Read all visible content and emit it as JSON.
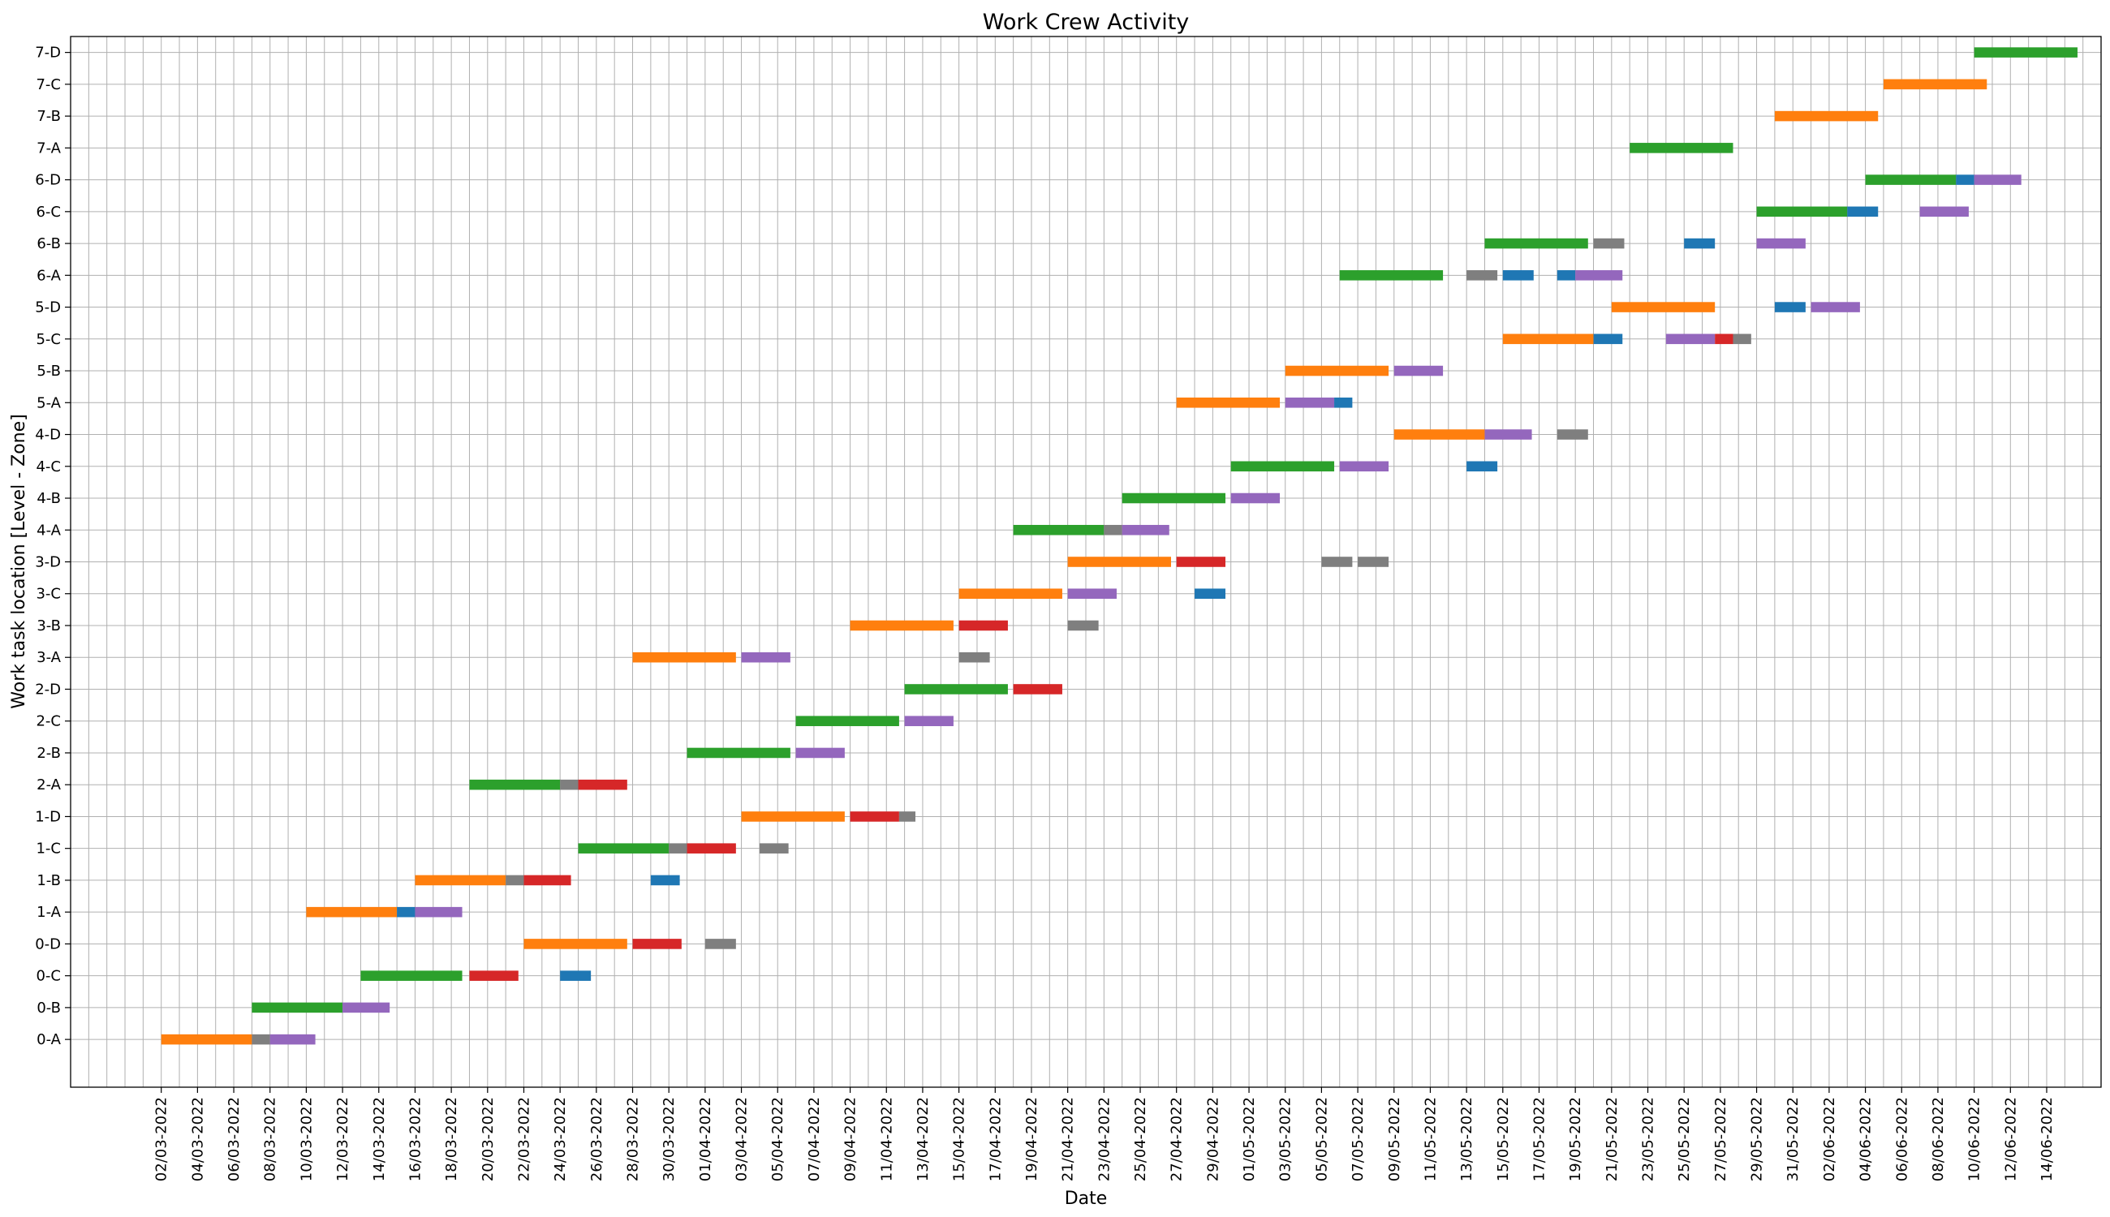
{
  "chart_data": {
    "type": "bar",
    "orientation": "horizontal",
    "title": "Work Crew Activity",
    "xlabel": "Date",
    "ylabel": "Work task location [Level - Zone]",
    "grid": true,
    "x_axis": {
      "min": "2022-02-25",
      "max": "2022-06-17",
      "tick_labels": [
        "02/03-2022",
        "04/03-2022",
        "06/03-2022",
        "08/03-2022",
        "10/03-2022",
        "12/03-2022",
        "14/03-2022",
        "16/03-2022",
        "18/03-2022",
        "20/03-2022",
        "22/03-2022",
        "24/03-2022",
        "26/03-2022",
        "28/03-2022",
        "30/03-2022",
        "01/04-2022",
        "03/04-2022",
        "05/04-2022",
        "07/04-2022",
        "09/04-2022",
        "11/04-2022",
        "13/04-2022",
        "15/04-2022",
        "17/04-2022",
        "19/04-2022",
        "21/04-2022",
        "23/04-2022",
        "25/04-2022",
        "27/04-2022",
        "29/04-2022",
        "01/05-2022",
        "03/05-2022",
        "05/05-2022",
        "07/05-2022",
        "09/05-2022",
        "11/05-2022",
        "13/05-2022",
        "15/05-2022",
        "17/05-2022",
        "19/05-2022",
        "21/05-2022",
        "23/05-2022",
        "25/05-2022",
        "27/05-2022",
        "29/05-2022",
        "31/05-2022",
        "02/06-2022",
        "04/06-2022",
        "06/06-2022",
        "08/06-2022",
        "10/06-2022",
        "12/06-2022",
        "14/06-2022"
      ]
    },
    "categories": [
      "0-A",
      "0-B",
      "0-C",
      "0-D",
      "1-A",
      "1-B",
      "1-C",
      "1-D",
      "2-A",
      "2-B",
      "2-C",
      "2-D",
      "3-A",
      "3-B",
      "3-C",
      "3-D",
      "4-A",
      "4-B",
      "4-C",
      "4-D",
      "5-A",
      "5-B",
      "5-C",
      "5-D",
      "6-A",
      "6-B",
      "6-C",
      "6-D",
      "7-A",
      "7-B",
      "7-C",
      "7-D"
    ],
    "colors": {
      "orange": "#ff7f0e",
      "green": "#2ca02c",
      "blue": "#1f77b4",
      "red": "#d62728",
      "purple": "#9467bd",
      "gray": "#7f7f7f"
    },
    "bars": [
      {
        "task": "0-A",
        "start": "2022-03-02",
        "end": "2022-03-07",
        "color": "orange"
      },
      {
        "task": "0-A",
        "start": "2022-03-07",
        "end": "2022-03-08",
        "color": "gray"
      },
      {
        "task": "0-A",
        "start": "2022-03-08",
        "end": "2022-03-10.5",
        "color": "purple"
      },
      {
        "task": "0-B",
        "start": "2022-03-07",
        "end": "2022-03-12",
        "color": "green"
      },
      {
        "task": "0-B",
        "start": "2022-03-12",
        "end": "2022-03-14.6",
        "color": "purple"
      },
      {
        "task": "0-C",
        "start": "2022-03-13",
        "end": "2022-03-18.6",
        "color": "green"
      },
      {
        "task": "0-C",
        "start": "2022-03-19",
        "end": "2022-03-21.7",
        "color": "red"
      },
      {
        "task": "0-C",
        "start": "2022-03-24",
        "end": "2022-03-25.7",
        "color": "blue"
      },
      {
        "task": "0-D",
        "start": "2022-03-22",
        "end": "2022-03-27.7",
        "color": "orange"
      },
      {
        "task": "0-D",
        "start": "2022-03-28",
        "end": "2022-03-30.7",
        "color": "red"
      },
      {
        "task": "0-D",
        "start": "2022-04-01",
        "end": "2022-04-02.7",
        "color": "gray"
      },
      {
        "task": "1-A",
        "start": "2022-03-10",
        "end": "2022-03-15",
        "color": "orange"
      },
      {
        "task": "1-A",
        "start": "2022-03-15",
        "end": "2022-03-16",
        "color": "blue"
      },
      {
        "task": "1-A",
        "start": "2022-03-16",
        "end": "2022-03-18.6",
        "color": "purple"
      },
      {
        "task": "1-B",
        "start": "2022-03-16",
        "end": "2022-03-21",
        "color": "orange"
      },
      {
        "task": "1-B",
        "start": "2022-03-21",
        "end": "2022-03-22",
        "color": "gray"
      },
      {
        "task": "1-B",
        "start": "2022-03-22",
        "end": "2022-03-24.6",
        "color": "red"
      },
      {
        "task": "1-B",
        "start": "2022-03-29",
        "end": "2022-03-30.6",
        "color": "blue"
      },
      {
        "task": "1-C",
        "start": "2022-03-25",
        "end": "2022-03-30",
        "color": "green"
      },
      {
        "task": "1-C",
        "start": "2022-03-30",
        "end": "2022-03-31",
        "color": "gray"
      },
      {
        "task": "1-C",
        "start": "2022-03-31",
        "end": "2022-04-02.7",
        "color": "red"
      },
      {
        "task": "1-C",
        "start": "2022-04-04",
        "end": "2022-04-05.6",
        "color": "gray"
      },
      {
        "task": "1-D",
        "start": "2022-04-03",
        "end": "2022-04-08.7",
        "color": "orange"
      },
      {
        "task": "1-D",
        "start": "2022-04-09",
        "end": "2022-04-11.7",
        "color": "red"
      },
      {
        "task": "1-D",
        "start": "2022-04-11.7",
        "end": "2022-04-12.6",
        "color": "gray"
      },
      {
        "task": "2-A",
        "start": "2022-03-19",
        "end": "2022-03-24",
        "color": "green"
      },
      {
        "task": "2-A",
        "start": "2022-03-24",
        "end": "2022-03-25",
        "color": "gray"
      },
      {
        "task": "2-A",
        "start": "2022-03-25",
        "end": "2022-03-27.7",
        "color": "red"
      },
      {
        "task": "2-B",
        "start": "2022-03-31",
        "end": "2022-04-05.7",
        "color": "green"
      },
      {
        "task": "2-B",
        "start": "2022-04-06",
        "end": "2022-04-08.7",
        "color": "purple"
      },
      {
        "task": "2-C",
        "start": "2022-04-06",
        "end": "2022-04-11.7",
        "color": "green"
      },
      {
        "task": "2-C",
        "start": "2022-04-12",
        "end": "2022-04-14.7",
        "color": "purple"
      },
      {
        "task": "2-D",
        "start": "2022-04-12",
        "end": "2022-04-17.7",
        "color": "green"
      },
      {
        "task": "2-D",
        "start": "2022-04-18",
        "end": "2022-04-20.7",
        "color": "red"
      },
      {
        "task": "3-A",
        "start": "2022-03-28",
        "end": "2022-04-02.7",
        "color": "orange"
      },
      {
        "task": "3-A",
        "start": "2022-04-03",
        "end": "2022-04-05.7",
        "color": "purple"
      },
      {
        "task": "3-A",
        "start": "2022-04-15",
        "end": "2022-04-16.7",
        "color": "gray"
      },
      {
        "task": "3-B",
        "start": "2022-04-09",
        "end": "2022-04-14.7",
        "color": "orange"
      },
      {
        "task": "3-B",
        "start": "2022-04-15",
        "end": "2022-04-17.7",
        "color": "red"
      },
      {
        "task": "3-B",
        "start": "2022-04-21",
        "end": "2022-04-22.7",
        "color": "gray"
      },
      {
        "task": "3-C",
        "start": "2022-04-15",
        "end": "2022-04-20.7",
        "color": "orange"
      },
      {
        "task": "3-C",
        "start": "2022-04-21",
        "end": "2022-04-23.7",
        "color": "purple"
      },
      {
        "task": "3-C",
        "start": "2022-04-28",
        "end": "2022-04-29.7",
        "color": "blue"
      },
      {
        "task": "3-D",
        "start": "2022-04-21",
        "end": "2022-04-26.7",
        "color": "orange"
      },
      {
        "task": "3-D",
        "start": "2022-04-27",
        "end": "2022-04-29.7",
        "color": "red"
      },
      {
        "task": "3-D",
        "start": "2022-05-05",
        "end": "2022-05-06.7",
        "color": "gray"
      },
      {
        "task": "3-D",
        "start": "2022-05-07",
        "end": "2022-05-08.7",
        "color": "gray"
      },
      {
        "task": "4-A",
        "start": "2022-04-18",
        "end": "2022-04-23",
        "color": "green"
      },
      {
        "task": "4-A",
        "start": "2022-04-23",
        "end": "2022-04-24",
        "color": "gray"
      },
      {
        "task": "4-A",
        "start": "2022-04-24",
        "end": "2022-04-26.6",
        "color": "purple"
      },
      {
        "task": "4-B",
        "start": "2022-04-24",
        "end": "2022-04-29.7",
        "color": "green"
      },
      {
        "task": "4-B",
        "start": "2022-04-30",
        "end": "2022-05-02.7",
        "color": "purple"
      },
      {
        "task": "4-C",
        "start": "2022-04-30",
        "end": "2022-05-05.7",
        "color": "green"
      },
      {
        "task": "4-C",
        "start": "2022-05-06",
        "end": "2022-05-08.7",
        "color": "purple"
      },
      {
        "task": "4-C",
        "start": "2022-05-13",
        "end": "2022-05-14.7",
        "color": "blue"
      },
      {
        "task": "4-D",
        "start": "2022-05-09",
        "end": "2022-05-14",
        "color": "orange"
      },
      {
        "task": "4-D",
        "start": "2022-05-14",
        "end": "2022-05-16.6",
        "color": "purple"
      },
      {
        "task": "4-D",
        "start": "2022-05-18",
        "end": "2022-05-19.7",
        "color": "gray"
      },
      {
        "task": "5-A",
        "start": "2022-04-27",
        "end": "2022-05-02.7",
        "color": "orange"
      },
      {
        "task": "5-A",
        "start": "2022-05-03",
        "end": "2022-05-05.7",
        "color": "purple"
      },
      {
        "task": "5-A",
        "start": "2022-05-05.7",
        "end": "2022-05-06.7",
        "color": "blue"
      },
      {
        "task": "5-B",
        "start": "2022-05-03",
        "end": "2022-05-08.7",
        "color": "orange"
      },
      {
        "task": "5-B",
        "start": "2022-05-09",
        "end": "2022-05-11.7",
        "color": "purple"
      },
      {
        "task": "5-C",
        "start": "2022-05-15",
        "end": "2022-05-20",
        "color": "orange"
      },
      {
        "task": "5-C",
        "start": "2022-05-20",
        "end": "2022-05-21.6",
        "color": "blue"
      },
      {
        "task": "5-C",
        "start": "2022-05-24",
        "end": "2022-05-26.7",
        "color": "purple"
      },
      {
        "task": "5-C",
        "start": "2022-05-26.7",
        "end": "2022-05-27.7",
        "color": "red"
      },
      {
        "task": "5-C",
        "start": "2022-05-27.7",
        "end": "2022-05-28.7",
        "color": "gray"
      },
      {
        "task": "5-D",
        "start": "2022-05-21",
        "end": "2022-05-26.7",
        "color": "orange"
      },
      {
        "task": "5-D",
        "start": "2022-05-30",
        "end": "2022-05-31.7",
        "color": "blue"
      },
      {
        "task": "5-D",
        "start": "2022-06-01",
        "end": "2022-06-03.7",
        "color": "purple"
      },
      {
        "task": "6-A",
        "start": "2022-05-06",
        "end": "2022-05-11.7",
        "color": "green"
      },
      {
        "task": "6-A",
        "start": "2022-05-13",
        "end": "2022-05-14.7",
        "color": "gray"
      },
      {
        "task": "6-A",
        "start": "2022-05-15",
        "end": "2022-05-16.7",
        "color": "blue"
      },
      {
        "task": "6-A",
        "start": "2022-05-18",
        "end": "2022-05-19",
        "color": "blue"
      },
      {
        "task": "6-A",
        "start": "2022-05-19",
        "end": "2022-05-21.6",
        "color": "purple"
      },
      {
        "task": "6-B",
        "start": "2022-05-14",
        "end": "2022-05-19.7",
        "color": "green"
      },
      {
        "task": "6-B",
        "start": "2022-05-20",
        "end": "2022-05-21.7",
        "color": "gray"
      },
      {
        "task": "6-B",
        "start": "2022-05-25",
        "end": "2022-05-26.7",
        "color": "blue"
      },
      {
        "task": "6-B",
        "start": "2022-05-29",
        "end": "2022-05-31.7",
        "color": "purple"
      },
      {
        "task": "6-C",
        "start": "2022-05-29",
        "end": "2022-06-03",
        "color": "green"
      },
      {
        "task": "6-C",
        "start": "2022-06-03",
        "end": "2022-06-04.7",
        "color": "blue"
      },
      {
        "task": "6-C",
        "start": "2022-06-07",
        "end": "2022-06-09.7",
        "color": "purple"
      },
      {
        "task": "6-D",
        "start": "2022-06-04",
        "end": "2022-06-09",
        "color": "green"
      },
      {
        "task": "6-D",
        "start": "2022-06-09",
        "end": "2022-06-10",
        "color": "blue"
      },
      {
        "task": "6-D",
        "start": "2022-06-10",
        "end": "2022-06-12.6",
        "color": "purple"
      },
      {
        "task": "7-A",
        "start": "2022-05-22",
        "end": "2022-05-27.7",
        "color": "green"
      },
      {
        "task": "7-B",
        "start": "2022-05-30",
        "end": "2022-06-04.7",
        "color": "orange"
      },
      {
        "task": "7-C",
        "start": "2022-06-05",
        "end": "2022-06-10.7",
        "color": "orange"
      },
      {
        "task": "7-D",
        "start": "2022-06-10",
        "end": "2022-06-15.7",
        "color": "green"
      }
    ]
  }
}
